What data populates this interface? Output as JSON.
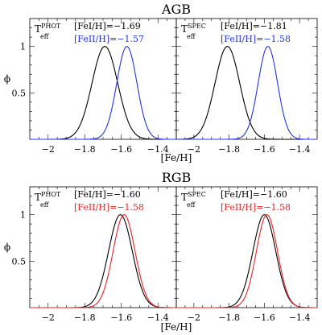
{
  "chart_data": [
    {
      "type": "line",
      "row_title": "AGB",
      "panel_label": {
        "base": "T",
        "sup": "PHOT",
        "sub": "eff"
      },
      "xlim": [
        -2.1,
        -1.3
      ],
      "ylim": [
        0,
        1.3
      ],
      "xticks": [
        -2,
        -1.8,
        -1.6,
        -1.4
      ],
      "xtick_labels": [
        "−2",
        "−1.8",
        "−1.6",
        "−1.4"
      ],
      "yticks": [
        0.5,
        1
      ],
      "ytick_labels": [
        "0.5",
        "1"
      ],
      "ylabel": "ϕ",
      "xlabel": "[Fe/H]",
      "series": [
        {
          "name": "[FeI/H]=−1.69",
          "color": "#000000",
          "mean": -1.69,
          "sigma": 0.07
        },
        {
          "name": "[FeII/H]=−1.57",
          "color": "#2233ee",
          "mean": -1.57,
          "sigma": 0.055
        }
      ]
    },
    {
      "type": "line",
      "row_title": "AGB",
      "panel_label": {
        "base": "T",
        "sup": "SPEC",
        "sub": "eff"
      },
      "xlim": [
        -2.1,
        -1.3
      ],
      "ylim": [
        0,
        1.3
      ],
      "xticks": [
        -2,
        -1.8,
        -1.6,
        -1.4
      ],
      "xtick_labels": [
        "−2",
        "−1.8",
        "−1.6",
        "−1.4"
      ],
      "yticks": [
        0.5,
        1
      ],
      "ytick_labels": [
        "0.5",
        "1"
      ],
      "xlabel": "[Fe/H]",
      "series": [
        {
          "name": "[FeI/H]=−1.81",
          "color": "#000000",
          "mean": -1.81,
          "sigma": 0.07
        },
        {
          "name": "[FeII/H]=−1.58",
          "color": "#2233ee",
          "mean": -1.58,
          "sigma": 0.055
        }
      ]
    },
    {
      "type": "line",
      "row_title": "RGB",
      "panel_label": {
        "base": "T",
        "sup": "PHOT",
        "sub": "eff"
      },
      "xlim": [
        -2.1,
        -1.3
      ],
      "ylim": [
        0,
        1.3
      ],
      "xticks": [
        -2,
        -1.8,
        -1.6,
        -1.4
      ],
      "xtick_labels": [
        "−2",
        "−1.8",
        "−1.6",
        "−1.4"
      ],
      "yticks": [
        0.5,
        1
      ],
      "ytick_labels": [
        "0.5",
        "1"
      ],
      "ylabel": "ϕ",
      "xlabel": "[Fe/H]",
      "series": [
        {
          "name": "[FeI/H]=−1.60",
          "color": "#000000",
          "mean": -1.605,
          "sigma": 0.065
        },
        {
          "name": "[FeII/H]=−1.58",
          "color": "#ee2222",
          "mean": -1.585,
          "sigma": 0.06
        }
      ]
    },
    {
      "type": "line",
      "row_title": "RGB",
      "panel_label": {
        "base": "T",
        "sup": "SPEC",
        "sub": "eff"
      },
      "xlim": [
        -2.1,
        -1.3
      ],
      "ylim": [
        0,
        1.3
      ],
      "xticks": [
        -2,
        -1.8,
        -1.6,
        -1.4
      ],
      "xtick_labels": [
        "−2",
        "−1.8",
        "−1.6",
        "−1.4"
      ],
      "yticks": [
        0.5,
        1
      ],
      "ytick_labels": [
        "0.5",
        "1"
      ],
      "xlabel": "[Fe/H]",
      "series": [
        {
          "name": "[FeI/H]=−1.60",
          "color": "#000000",
          "mean": -1.6,
          "sigma": 0.065
        },
        {
          "name": "[FeII/H]=−1.58",
          "color": "#ee2222",
          "mean": -1.585,
          "sigma": 0.06
        }
      ]
    }
  ],
  "row_titles": [
    "AGB",
    "RGB"
  ],
  "xlabel": "[Fe/H]"
}
